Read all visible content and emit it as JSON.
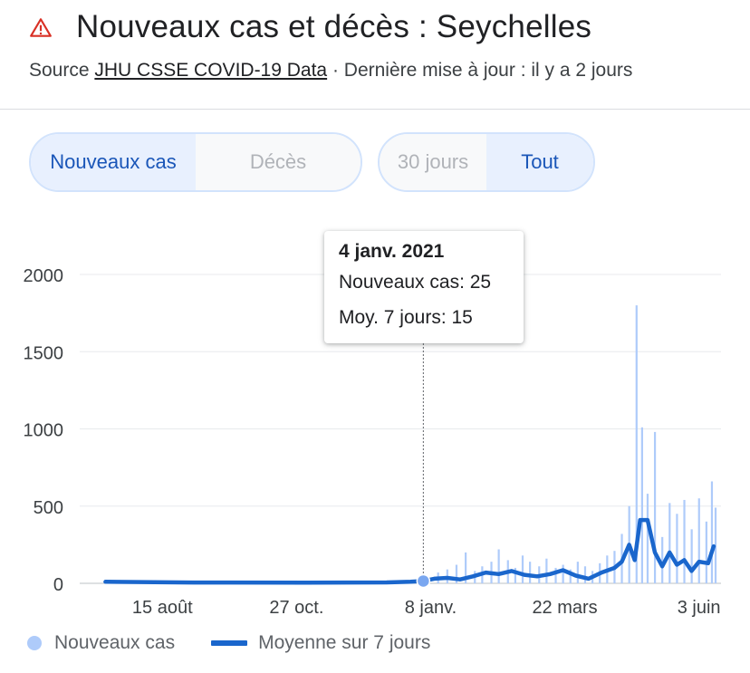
{
  "header": {
    "title": "Nouveaux cas et décès : Seychelles",
    "source_prefix": "Source ",
    "source_link": "JHU CSSE COVID-19 Data",
    "source_suffix": " · Dernière mise à jour : il y a 2 jours"
  },
  "icons": {
    "warning": "warning-triangle-icon"
  },
  "metric_toggle": {
    "options": [
      "Nouveaux cas",
      "Décès"
    ],
    "selected": "Nouveaux cas"
  },
  "range_toggle": {
    "options": [
      "30 jours",
      "Tout"
    ],
    "selected": "Tout"
  },
  "tooltip": {
    "date": "4 janv. 2021",
    "new_cases_label": "Nouveaux cas: 25",
    "avg_label": "Moy. 7 jours: 15"
  },
  "legend": {
    "bars": "Nouveaux cas",
    "line": "Moyenne sur 7 jours"
  },
  "colors": {
    "bar": "#aecbfa",
    "line": "#1a66cc",
    "accent": "#1a56b8",
    "warning": "#d93025"
  },
  "chart_data": {
    "type": "bar",
    "title": "Nouveaux cas et décès : Seychelles",
    "ylim": [
      0,
      2000
    ],
    "yticks": [
      0,
      500,
      1000,
      1500,
      2000
    ],
    "xlim": [
      "2020-07-01",
      "2021-06-15"
    ],
    "xticks": [
      {
        "date": "2020-08-15",
        "label": "15 août"
      },
      {
        "date": "2020-10-27",
        "label": "27 oct."
      },
      {
        "date": "2021-01-08",
        "label": "8 janv."
      },
      {
        "date": "2021-03-22",
        "label": "22 mars"
      },
      {
        "date": "2021-06-03",
        "label": "3 juin"
      }
    ],
    "grid": true,
    "legend_position": "bottom",
    "highlight": {
      "date": "2021-01-04",
      "new_cases": 25,
      "avg_7d": 15
    },
    "series": [
      {
        "name": "Nouveaux cas",
        "type": "bar",
        "points": [
          [
            "2021-01-12",
            70
          ],
          [
            "2021-01-17",
            90
          ],
          [
            "2021-01-22",
            120
          ],
          [
            "2021-01-27",
            200
          ],
          [
            "2021-02-01",
            80
          ],
          [
            "2021-02-05",
            110
          ],
          [
            "2021-02-10",
            140
          ],
          [
            "2021-02-14",
            220
          ],
          [
            "2021-02-19",
            150
          ],
          [
            "2021-02-23",
            100
          ],
          [
            "2021-02-27",
            180
          ],
          [
            "2021-03-03",
            140
          ],
          [
            "2021-03-08",
            110
          ],
          [
            "2021-03-12",
            160
          ],
          [
            "2021-03-17",
            100
          ],
          [
            "2021-03-21",
            120
          ],
          [
            "2021-03-25",
            90
          ],
          [
            "2021-03-29",
            140
          ],
          [
            "2021-04-02",
            110
          ],
          [
            "2021-04-06",
            80
          ],
          [
            "2021-04-10",
            130
          ],
          [
            "2021-04-14",
            180
          ],
          [
            "2021-04-18",
            210
          ],
          [
            "2021-04-22",
            320
          ],
          [
            "2021-04-26",
            500
          ],
          [
            "2021-04-30",
            1800
          ],
          [
            "2021-05-03",
            1010
          ],
          [
            "2021-05-06",
            580
          ],
          [
            "2021-05-10",
            980
          ],
          [
            "2021-05-14",
            300
          ],
          [
            "2021-05-18",
            520
          ],
          [
            "2021-05-22",
            450
          ],
          [
            "2021-05-26",
            540
          ],
          [
            "2021-05-30",
            350
          ],
          [
            "2021-06-03",
            550
          ],
          [
            "2021-06-07",
            400
          ],
          [
            "2021-06-10",
            660
          ],
          [
            "2021-06-12",
            490
          ]
        ]
      },
      {
        "name": "Moyenne sur 7 jours",
        "type": "line",
        "points": [
          [
            "2020-07-15",
            10
          ],
          [
            "2020-09-01",
            5
          ],
          [
            "2020-11-01",
            4
          ],
          [
            "2020-12-15",
            6
          ],
          [
            "2020-12-28",
            10
          ],
          [
            "2021-01-04",
            15
          ],
          [
            "2021-01-10",
            30
          ],
          [
            "2021-01-17",
            35
          ],
          [
            "2021-01-24",
            25
          ],
          [
            "2021-01-31",
            45
          ],
          [
            "2021-02-07",
            70
          ],
          [
            "2021-02-14",
            60
          ],
          [
            "2021-02-21",
            80
          ],
          [
            "2021-02-28",
            55
          ],
          [
            "2021-03-07",
            45
          ],
          [
            "2021-03-14",
            60
          ],
          [
            "2021-03-21",
            85
          ],
          [
            "2021-03-28",
            50
          ],
          [
            "2021-04-04",
            30
          ],
          [
            "2021-04-11",
            70
          ],
          [
            "2021-04-18",
            100
          ],
          [
            "2021-04-22",
            140
          ],
          [
            "2021-04-26",
            250
          ],
          [
            "2021-04-29",
            150
          ],
          [
            "2021-05-02",
            410
          ],
          [
            "2021-05-06",
            410
          ],
          [
            "2021-05-10",
            200
          ],
          [
            "2021-05-14",
            110
          ],
          [
            "2021-05-18",
            200
          ],
          [
            "2021-05-22",
            120
          ],
          [
            "2021-05-26",
            150
          ],
          [
            "2021-05-30",
            80
          ],
          [
            "2021-06-03",
            140
          ],
          [
            "2021-06-08",
            130
          ],
          [
            "2021-06-11",
            240
          ]
        ]
      }
    ]
  }
}
